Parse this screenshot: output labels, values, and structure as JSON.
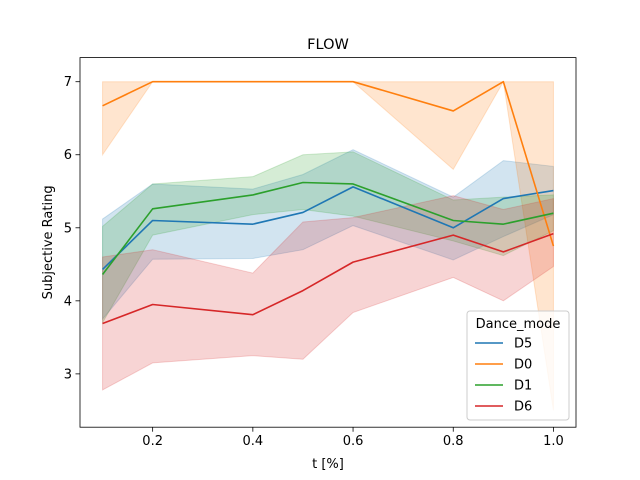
{
  "chart_data": {
    "type": "line",
    "title": "FLOW",
    "xlabel": "t [%]",
    "ylabel": "Subjective Rating",
    "xlim": [
      0.055,
      1.045
    ],
    "ylim": [
      2.27,
      7.33
    ],
    "xticks": [
      0.2,
      0.4,
      0.6,
      0.8,
      1.0
    ],
    "xtick_labels": [
      "0.2",
      "0.4",
      "0.6",
      "0.8",
      "1.0"
    ],
    "yticks": [
      3,
      4,
      5,
      6,
      7
    ],
    "ytick_labels": [
      "3",
      "4",
      "5",
      "6",
      "7"
    ],
    "grid": false,
    "legend": {
      "title": "Dance_mode",
      "placement": "lower-right"
    },
    "x": [
      0.1,
      0.2,
      0.4,
      0.5,
      0.6,
      0.8,
      0.9,
      1.0
    ],
    "series": [
      {
        "name": "D5",
        "color": "#1f77b4",
        "values": [
          4.43,
          5.1,
          5.05,
          5.21,
          5.56,
          5.0,
          5.4,
          5.51
        ],
        "ci_lower": [
          3.75,
          4.57,
          4.58,
          4.7,
          5.03,
          4.56,
          4.88,
          5.18
        ],
        "ci_upper": [
          5.12,
          5.6,
          5.53,
          5.73,
          6.07,
          5.42,
          5.92,
          5.84
        ]
      },
      {
        "name": "D0",
        "color": "#ff7f0e",
        "values": [
          6.67,
          7.0,
          7.0,
          7.0,
          7.0,
          6.6,
          7.0,
          4.75
        ],
        "ci_lower": [
          6.0,
          7.0,
          7.0,
          7.0,
          7.0,
          5.8,
          7.0,
          2.5
        ],
        "ci_upper": [
          7.0,
          7.0,
          7.0,
          7.0,
          7.0,
          7.0,
          7.0,
          7.0
        ]
      },
      {
        "name": "D1",
        "color": "#2ca02c",
        "values": [
          4.36,
          5.26,
          5.45,
          5.62,
          5.6,
          5.1,
          5.05,
          5.2
        ],
        "ci_lower": [
          3.7,
          4.9,
          5.18,
          5.25,
          5.16,
          4.82,
          4.62,
          4.96
        ],
        "ci_upper": [
          5.02,
          5.6,
          5.7,
          6.0,
          6.04,
          5.38,
          5.42,
          5.45
        ]
      },
      {
        "name": "D6",
        "color": "#d62728",
        "values": [
          3.69,
          3.95,
          3.81,
          4.14,
          4.53,
          4.9,
          4.67,
          4.92
        ],
        "ci_lower": [
          2.78,
          3.15,
          3.25,
          3.2,
          3.84,
          4.32,
          4.0,
          4.47
        ],
        "ci_upper": [
          4.6,
          4.7,
          4.38,
          5.08,
          5.14,
          5.44,
          5.25,
          5.4
        ]
      }
    ]
  }
}
